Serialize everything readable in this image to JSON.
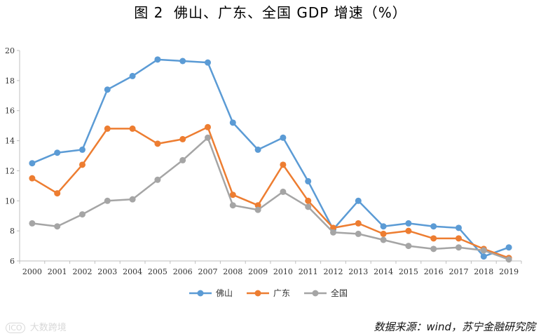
{
  "title": "图 2  佛山、广东、全国 GDP 增速（%）",
  "source": "数据来源：wind，苏宁金融研究院",
  "watermark": {
    "icon": "ICO",
    "text": "大数跨境"
  },
  "chart_data": {
    "type": "line",
    "title": "图 2  佛山、广东、全国 GDP 增速（%）",
    "xlabel": "",
    "ylabel": "",
    "categories": [
      "2000",
      "2001",
      "2002",
      "2003",
      "2004",
      "2005",
      "2006",
      "2007",
      "2008",
      "2009",
      "2010",
      "2011",
      "2012",
      "2013",
      "2014",
      "2015",
      "2016",
      "2017",
      "2018",
      "2019"
    ],
    "ylim": [
      6,
      20
    ],
    "yticks": [
      6,
      8,
      10,
      12,
      14,
      16,
      18,
      20
    ],
    "grid": false,
    "legend_position": "bottom",
    "series": [
      {
        "name": "佛山",
        "color": "#5B9BD5",
        "values": [
          12.5,
          13.2,
          13.4,
          17.4,
          18.3,
          19.4,
          19.3,
          19.2,
          15.2,
          13.4,
          14.2,
          11.3,
          8.1,
          10.0,
          8.3,
          8.5,
          8.3,
          8.2,
          6.3,
          6.9
        ]
      },
      {
        "name": "广东",
        "color": "#ED7D31",
        "values": [
          11.5,
          10.5,
          12.4,
          14.8,
          14.8,
          13.8,
          14.1,
          14.9,
          10.4,
          9.7,
          12.4,
          10.0,
          8.2,
          8.5,
          7.8,
          8.0,
          7.5,
          7.5,
          6.8,
          6.2
        ]
      },
      {
        "name": "全国",
        "color": "#A5A5A5",
        "values": [
          8.5,
          8.3,
          9.1,
          10.0,
          10.1,
          11.4,
          12.7,
          14.2,
          9.7,
          9.4,
          10.6,
          9.6,
          7.9,
          7.8,
          7.4,
          7.0,
          6.8,
          6.9,
          6.7,
          6.1
        ]
      }
    ]
  }
}
